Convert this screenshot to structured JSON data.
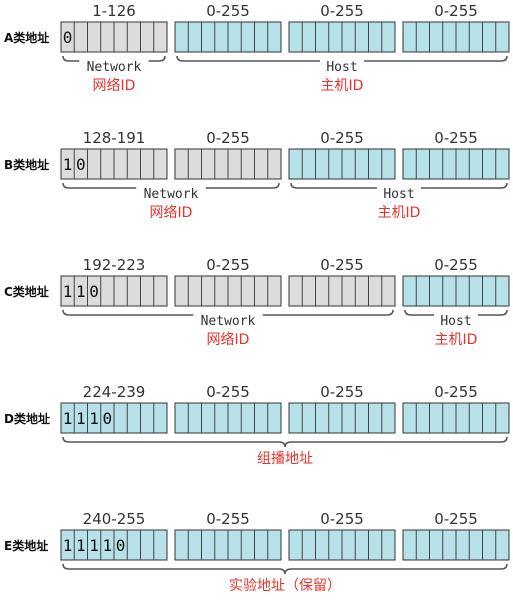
{
  "colors": {
    "network": "#dcdcdc",
    "host": "#b6e1e8",
    "outline": "#333333",
    "label_red": "#e8322b"
  },
  "classes": [
    {
      "label": "A类地址",
      "octets": [
        {
          "range": "1-126",
          "type": "network",
          "bits": "0"
        },
        {
          "range": "0-255",
          "type": "host",
          "bits": ""
        },
        {
          "range": "0-255",
          "type": "host",
          "bits": ""
        },
        {
          "range": "0-255",
          "type": "host",
          "bits": ""
        }
      ],
      "groups": [
        {
          "from": 0,
          "to": 0,
          "part": "Network",
          "label": "网络ID"
        },
        {
          "from": 1,
          "to": 3,
          "part": "Host",
          "label": "主机ID"
        }
      ]
    },
    {
      "label": "B类地址",
      "octets": [
        {
          "range": "128-191",
          "type": "network",
          "bits": "10"
        },
        {
          "range": "0-255",
          "type": "network",
          "bits": ""
        },
        {
          "range": "0-255",
          "type": "host",
          "bits": ""
        },
        {
          "range": "0-255",
          "type": "host",
          "bits": ""
        }
      ],
      "groups": [
        {
          "from": 0,
          "to": 1,
          "part": "Network",
          "label": "网络ID"
        },
        {
          "from": 2,
          "to": 3,
          "part": "Host",
          "label": "主机ID"
        }
      ]
    },
    {
      "label": "C类地址",
      "octets": [
        {
          "range": "192-223",
          "type": "network",
          "bits": "110"
        },
        {
          "range": "0-255",
          "type": "network",
          "bits": ""
        },
        {
          "range": "0-255",
          "type": "network",
          "bits": ""
        },
        {
          "range": "0-255",
          "type": "host",
          "bits": ""
        }
      ],
      "groups": [
        {
          "from": 0,
          "to": 2,
          "part": "Network",
          "label": "网络ID"
        },
        {
          "from": 3,
          "to": 3,
          "part": "Host",
          "label": "主机ID"
        }
      ]
    },
    {
      "label": "D类地址",
      "octets": [
        {
          "range": "224-239",
          "type": "host",
          "bits": "1110"
        },
        {
          "range": "0-255",
          "type": "host",
          "bits": ""
        },
        {
          "range": "0-255",
          "type": "host",
          "bits": ""
        },
        {
          "range": "0-255",
          "type": "host",
          "bits": ""
        }
      ],
      "groups": [
        {
          "from": 0,
          "to": 3,
          "part": "",
          "label": "组播地址"
        }
      ]
    },
    {
      "label": "E类地址",
      "octets": [
        {
          "range": "240-255",
          "type": "host",
          "bits": "11110"
        },
        {
          "range": "0-255",
          "type": "host",
          "bits": ""
        },
        {
          "range": "0-255",
          "type": "host",
          "bits": ""
        },
        {
          "range": "0-255",
          "type": "host",
          "bits": ""
        }
      ],
      "groups": [
        {
          "from": 0,
          "to": 3,
          "part": "",
          "label": "实验地址（保留）"
        }
      ]
    }
  ]
}
